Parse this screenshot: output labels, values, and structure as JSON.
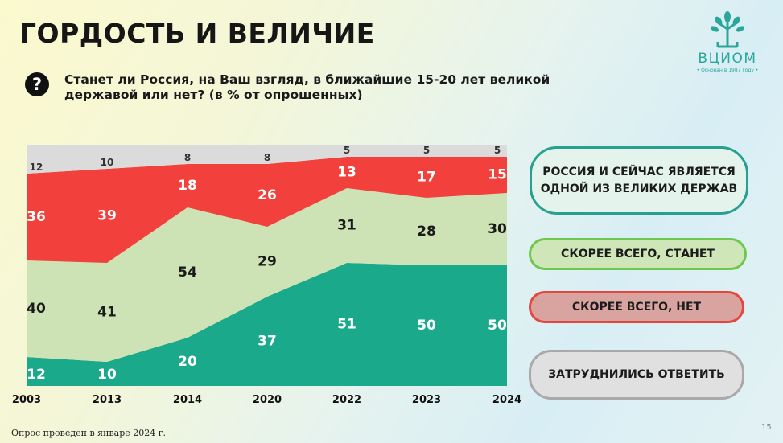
{
  "slide": {
    "title": "ГОРДОСТЬ И ВЕЛИЧИЕ",
    "question": "Станет ли Россия, на Ваш взгляд, в ближайшие 15-20 лет великой державой или нет? (в % от опрошенных)",
    "question_icon": "?",
    "footnote": "Опрос проведен в январе 2024 г.",
    "page_number": "15"
  },
  "logo": {
    "name": "ВЦИОМ",
    "subtitle": "• Основан в 1987 году •",
    "color": "#2aa79a"
  },
  "legend": {
    "now": "РОССИЯ И СЕЙЧАС ЯВЛЯЕТСЯ ОДНОЙ ИЗ ВЕЛИКИХ ДЕРЖАВ",
    "will": "СКОРЕЕ ВСЕГО, СТАНЕТ",
    "no": "СКОРЕЕ ВСЕГО, НЕТ",
    "hard": "ЗАТРУДНИЛИСЬ ОТВЕТИТЬ"
  },
  "chart_data": {
    "type": "area",
    "stacked": true,
    "percent": true,
    "categories": [
      "2003",
      "2013",
      "2014",
      "2020",
      "2022",
      "2023",
      "2024"
    ],
    "series": [
      {
        "name": "РОССИЯ И СЕЙЧАС ЯВЛЯЕТСЯ ОДНОЙ ИЗ ВЕЛИКИХ ДЕРЖАВ",
        "values": [
          12,
          10,
          20,
          37,
          51,
          50,
          50
        ],
        "color": "#1aa98a"
      },
      {
        "name": "СКОРЕЕ ВСЕГО, СТАНЕТ",
        "values": [
          40,
          41,
          54,
          29,
          31,
          28,
          30
        ],
        "color": "#cde2b5"
      },
      {
        "name": "СКОРЕЕ ВСЕГО, НЕТ",
        "values": [
          36,
          39,
          18,
          26,
          13,
          17,
          15
        ],
        "color": "#f2403c"
      },
      {
        "name": "ЗАТРУДНИЛИСЬ ОТВЕТИТЬ",
        "values": [
          12,
          10,
          8,
          8,
          5,
          5,
          5
        ],
        "color": "#dbdbdb"
      }
    ],
    "ylim": [
      0,
      100
    ],
    "grid": false,
    "legend_position": "right"
  }
}
